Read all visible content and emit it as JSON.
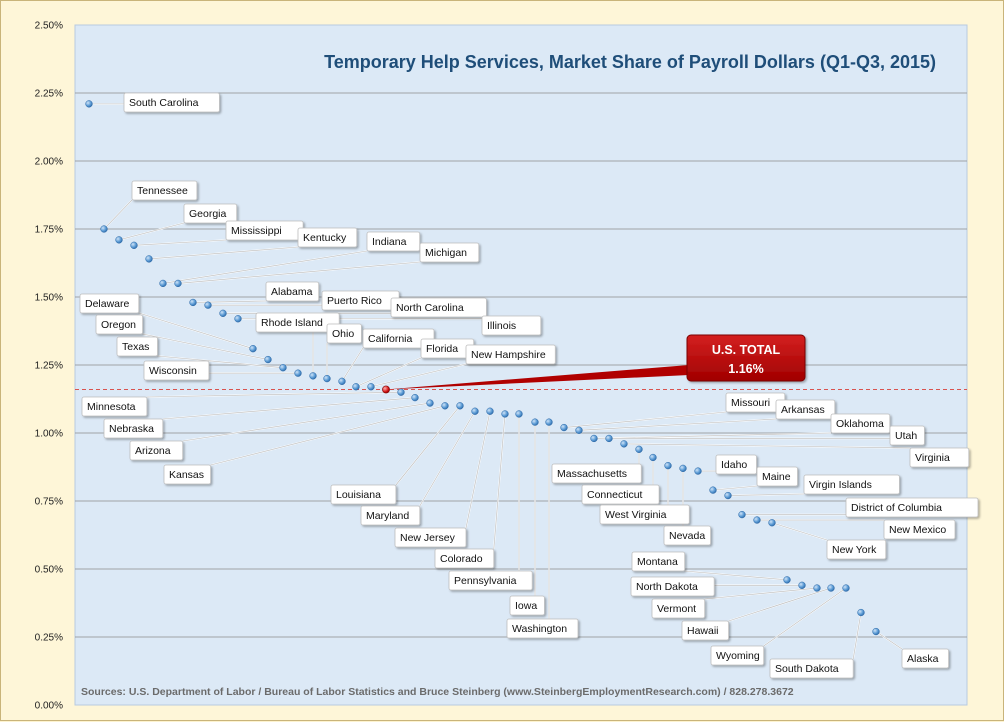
{
  "chart_data": {
    "type": "scatter",
    "title": "Temporary Help Services, Market Share of Payroll Dollars (Q1-Q3, 2015)",
    "source": "Sources: U.S. Department of Labor / Bureau of Labor Statistics and Bruce Steinberg (www.SteinbergEmploymentResearch.com) / 828.278.3672",
    "yticks": [
      "0.00%",
      "0.25%",
      "0.50%",
      "0.75%",
      "1.00%",
      "1.25%",
      "1.50%",
      "1.75%",
      "2.00%",
      "2.25%",
      "2.50%"
    ],
    "ylim": [
      0,
      2.5
    ],
    "grid": true,
    "reference": {
      "label_line1": "U.S. TOTAL",
      "label_line2": "1.16%",
      "value": 1.16
    },
    "points": [
      {
        "label": "South Carolina",
        "value": 2.21
      },
      {
        "label": "Tennessee",
        "value": 1.75
      },
      {
        "label": "Georgia",
        "value": 1.71
      },
      {
        "label": "Mississippi",
        "value": 1.69
      },
      {
        "label": "Kentucky",
        "value": 1.64
      },
      {
        "label": "Indiana",
        "value": 1.55
      },
      {
        "label": "Michigan",
        "value": 1.55
      },
      {
        "label": "Alabama",
        "value": 1.48
      },
      {
        "label": "Puerto Rico",
        "value": 1.47
      },
      {
        "label": "North Carolina",
        "value": 1.44
      },
      {
        "label": "Illinois",
        "value": 1.42
      },
      {
        "label": "Delaware",
        "value": 1.31
      },
      {
        "label": "Oregon",
        "value": 1.27
      },
      {
        "label": "Texas",
        "value": 1.24
      },
      {
        "label": "Wisconsin",
        "value": 1.22
      },
      {
        "label": "Rhode Island",
        "value": 1.21
      },
      {
        "label": "Ohio",
        "value": 1.2
      },
      {
        "label": "California",
        "value": 1.19
      },
      {
        "label": "Florida",
        "value": 1.17
      },
      {
        "label": "New Hampshire",
        "value": 1.17
      },
      {
        "label": "Minnesota",
        "value": 1.15
      },
      {
        "label": "Nebraska",
        "value": 1.13
      },
      {
        "label": "Arizona",
        "value": 1.11
      },
      {
        "label": "Kansas",
        "value": 1.1
      },
      {
        "label": "Louisiana",
        "value": 1.1
      },
      {
        "label": "Maryland",
        "value": 1.08
      },
      {
        "label": "New Jersey",
        "value": 1.08
      },
      {
        "label": "Colorado",
        "value": 1.07
      },
      {
        "label": "Pennsylvania",
        "value": 1.07
      },
      {
        "label": "Iowa",
        "value": 1.04
      },
      {
        "label": "Washington",
        "value": 1.04
      },
      {
        "label": "Missouri",
        "value": 1.02
      },
      {
        "label": "Arkansas",
        "value": 1.01
      },
      {
        "label": "Oklahoma",
        "value": 0.98
      },
      {
        "label": "Utah",
        "value": 0.98
      },
      {
        "label": "Virginia",
        "value": 0.96
      },
      {
        "label": "Massachusetts",
        "value": 0.94
      },
      {
        "label": "Connecticut",
        "value": 0.91
      },
      {
        "label": "West Virginia",
        "value": 0.88
      },
      {
        "label": "Nevada",
        "value": 0.87
      },
      {
        "label": "Idaho",
        "value": 0.86
      },
      {
        "label": "Maine",
        "value": 0.79
      },
      {
        "label": "Virgin Islands",
        "value": 0.77
      },
      {
        "label": "District of Columbia",
        "value": 0.7
      },
      {
        "label": "New Mexico",
        "value": 0.68
      },
      {
        "label": "New York",
        "value": 0.67
      },
      {
        "label": "Montana",
        "value": 0.46
      },
      {
        "label": "North Dakota",
        "value": 0.44
      },
      {
        "label": "Vermont",
        "value": 0.43
      },
      {
        "label": "Hawaii",
        "value": 0.43
      },
      {
        "label": "Wyoming",
        "value": 0.43
      },
      {
        "label": "South Dakota",
        "value": 0.34
      },
      {
        "label": "Alaska",
        "value": 0.27
      }
    ]
  }
}
